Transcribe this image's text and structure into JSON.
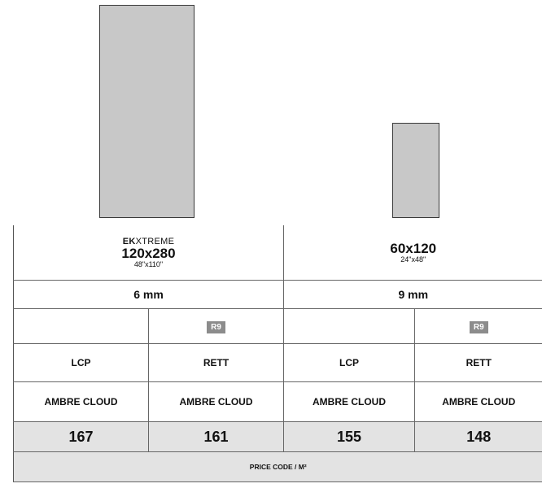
{
  "columns": [
    {
      "brand_bold": "EK",
      "brand_rest": "XTREME",
      "format": "120x280",
      "format_inches": "48\"x110\"",
      "thickness": "6 mm",
      "subcolumns": [
        {
          "badge": "",
          "finish": "LCP",
          "color": "AMBRE CLOUD",
          "price": "167"
        },
        {
          "badge": "R9",
          "finish": "RETT",
          "color": "AMBRE CLOUD",
          "price": "161"
        }
      ]
    },
    {
      "brand_bold": "",
      "brand_rest": "",
      "format": "60x120",
      "format_inches": "24\"x48\"",
      "thickness": "9 mm",
      "subcolumns": [
        {
          "badge": "",
          "finish": "LCP",
          "color": "AMBRE CLOUD",
          "price": "155"
        },
        {
          "badge": "R9",
          "finish": "RETT",
          "color": "AMBRE CLOUD",
          "price": "148"
        }
      ]
    }
  ],
  "footer": {
    "price_code_label": "PRICE CODE / M²"
  },
  "colors": {
    "tile_fill": "#c8c8c8",
    "tile_border": "#3a3a3a",
    "badge_fill": "#8c8c8c",
    "price_row_fill": "#e3e3e3",
    "grid_line": "#666666"
  }
}
